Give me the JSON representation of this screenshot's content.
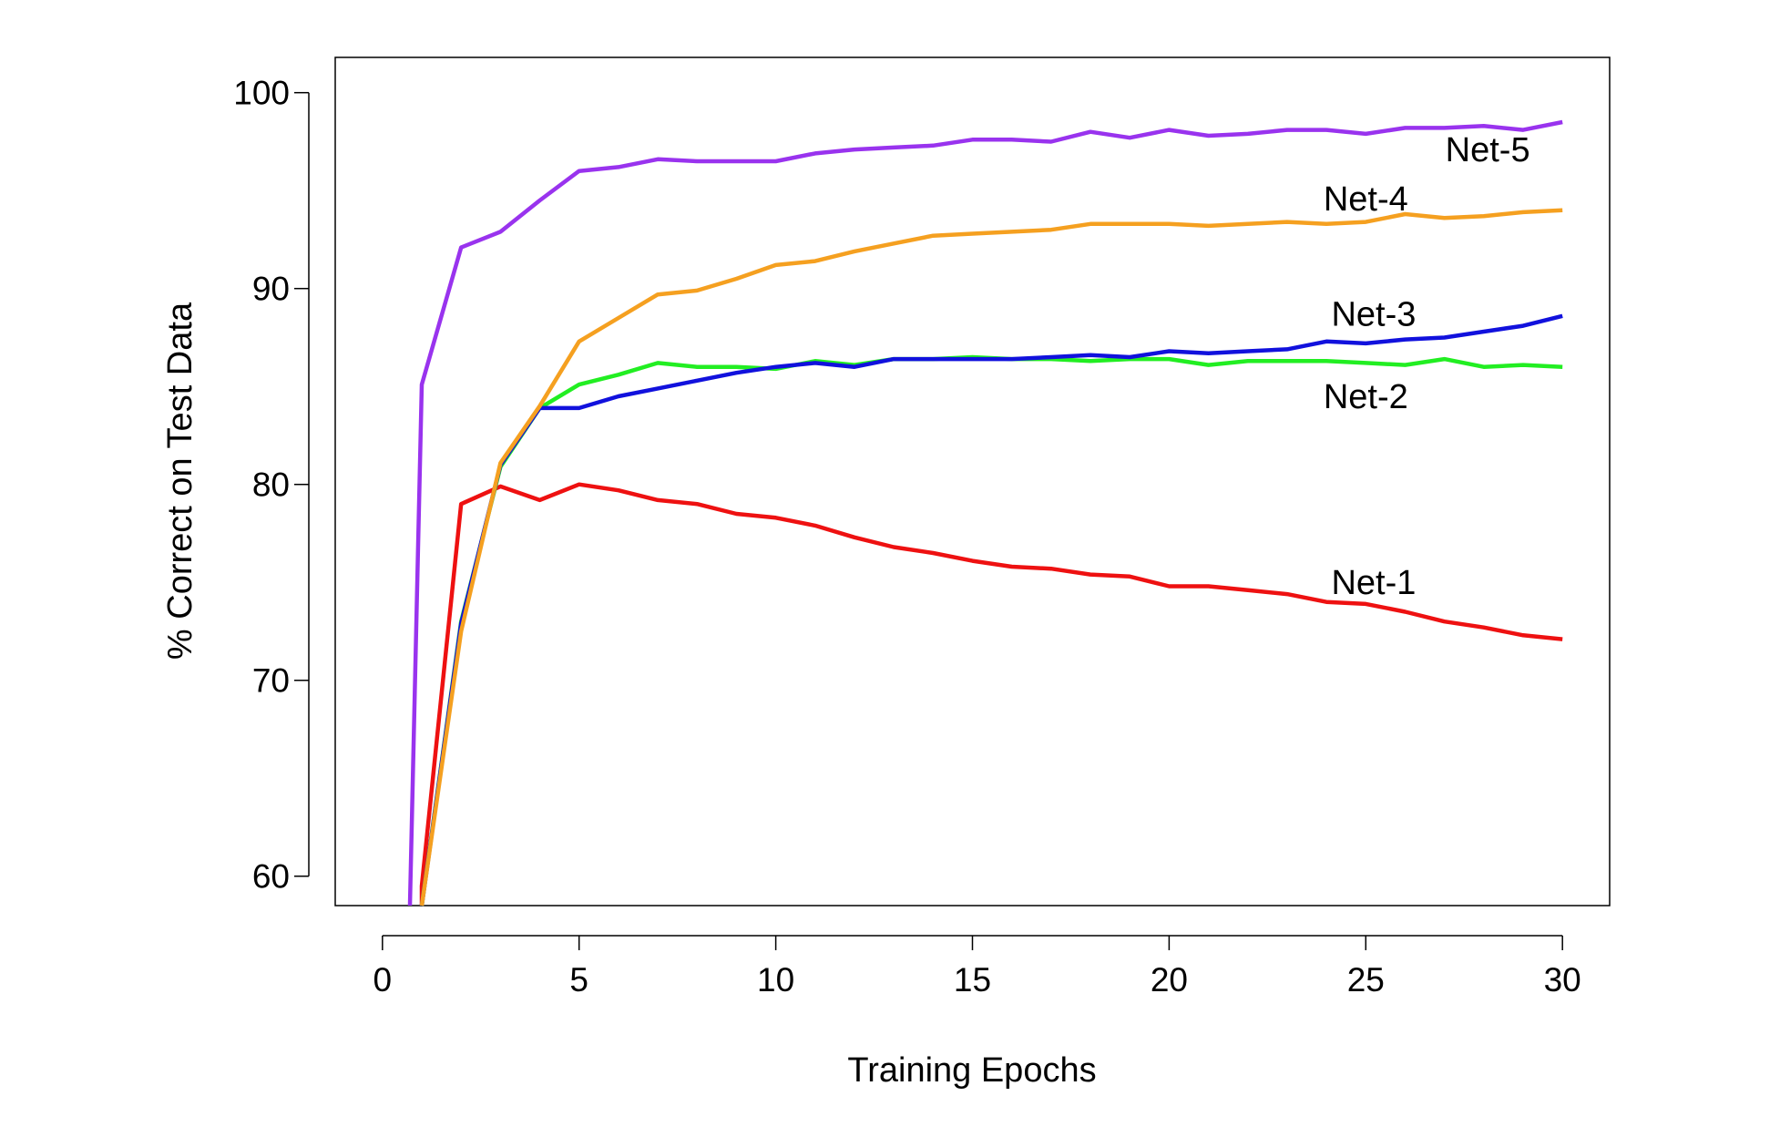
{
  "chart_data": {
    "type": "line",
    "title": "",
    "xlabel": "Training Epochs",
    "ylabel": "% Correct on Test Data",
    "xlim": [
      -1.2,
      31.2
    ],
    "ylim": [
      58.5,
      101.8
    ],
    "xticks": [
      0,
      5,
      10,
      15,
      20,
      25,
      30
    ],
    "yticks": [
      60,
      70,
      80,
      90,
      100
    ],
    "grid": false,
    "legend": "inline labels",
    "x": [
      1,
      2,
      3,
      4,
      5,
      6,
      7,
      8,
      9,
      10,
      11,
      12,
      13,
      14,
      15,
      16,
      17,
      18,
      19,
      20,
      21,
      22,
      23,
      24,
      25,
      26,
      27,
      28,
      29,
      30
    ],
    "series": [
      {
        "name": "Net-1",
        "color": "#ee1111",
        "start": [
          1,
          58.5
        ],
        "values": [
          59.5,
          79.0,
          79.9,
          79.2,
          80.0,
          79.7,
          79.2,
          79.0,
          78.5,
          78.3,
          77.9,
          77.3,
          76.8,
          76.5,
          76.1,
          75.8,
          75.7,
          75.4,
          75.3,
          74.8,
          74.8,
          74.6,
          74.4,
          74.0,
          73.9,
          73.5,
          73.0,
          72.7,
          72.3,
          72.1
        ]
      },
      {
        "name": "Net-2",
        "color": "#22ee22",
        "start": [
          1,
          58.5
        ],
        "values": [
          58.5,
          73.0,
          80.9,
          83.9,
          85.1,
          85.6,
          86.2,
          86.0,
          86.0,
          85.9,
          86.3,
          86.1,
          86.4,
          86.4,
          86.5,
          86.4,
          86.4,
          86.3,
          86.4,
          86.4,
          86.1,
          86.3,
          86.3,
          86.3,
          86.2,
          86.1,
          86.4,
          86.0,
          86.1,
          86.0
        ]
      },
      {
        "name": "Net-3",
        "color": "#1111dd",
        "start": [
          1,
          58.5
        ],
        "values": [
          58.5,
          72.9,
          81.0,
          83.9,
          83.9,
          84.5,
          84.9,
          85.3,
          85.7,
          86.0,
          86.2,
          86.0,
          86.4,
          86.4,
          86.4,
          86.4,
          86.5,
          86.6,
          86.5,
          86.8,
          86.7,
          86.8,
          86.9,
          87.3,
          87.2,
          87.4,
          87.5,
          87.8,
          88.1,
          88.6
        ]
      },
      {
        "name": "Net-4",
        "color": "#f5a020",
        "start": [
          1,
          58.5
        ],
        "values": [
          58.5,
          72.5,
          81.1,
          84.0,
          87.3,
          88.5,
          89.7,
          89.9,
          90.5,
          91.2,
          91.4,
          91.9,
          92.3,
          92.7,
          92.8,
          92.9,
          93.0,
          93.3,
          93.3,
          93.3,
          93.2,
          93.3,
          93.4,
          93.3,
          93.4,
          93.8,
          93.6,
          93.7,
          93.9,
          94.0
        ]
      },
      {
        "name": "Net-5",
        "color": "#9933ee",
        "start": [
          0.7,
          58.5
        ],
        "values": [
          85.1,
          92.1,
          92.9,
          94.5,
          96.0,
          96.2,
          96.6,
          96.5,
          96.5,
          96.5,
          96.9,
          97.1,
          97.2,
          97.3,
          97.6,
          97.6,
          97.5,
          98.0,
          97.7,
          98.1,
          97.8,
          97.9,
          98.1,
          98.1,
          97.9,
          98.2,
          98.2,
          98.3,
          98.1,
          98.5
        ]
      }
    ],
    "annotations": [
      {
        "text": "Net-5",
        "x": 28.1,
        "y": 97.1
      },
      {
        "text": "Net-4",
        "x": 25.0,
        "y": 94.6
      },
      {
        "text": "Net-3",
        "x": 25.2,
        "y": 88.7
      },
      {
        "text": "Net-2",
        "x": 25.0,
        "y": 84.5
      },
      {
        "text": "Net-1",
        "x": 25.2,
        "y": 75.0
      }
    ]
  }
}
